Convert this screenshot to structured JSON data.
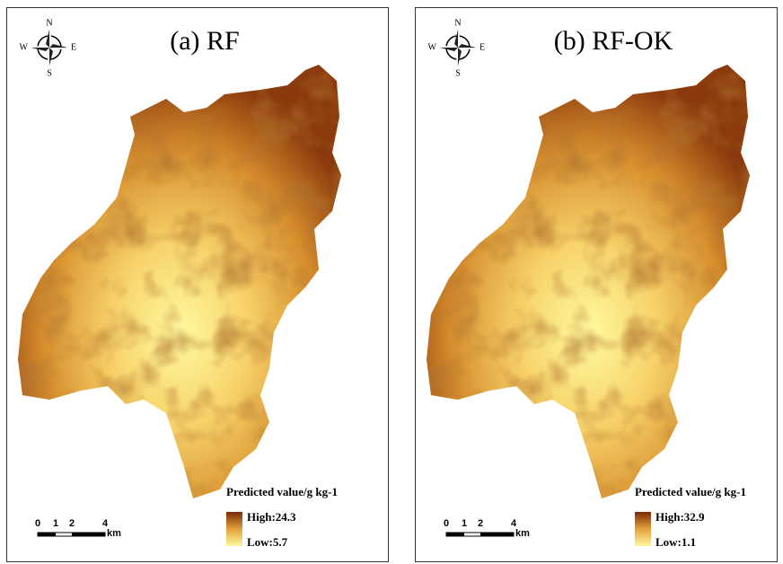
{
  "panels": [
    {
      "title": "(a) RF",
      "compass": {
        "n": "N",
        "s": "S",
        "w": "W",
        "e": "E"
      },
      "legend": {
        "title": "Predicted value/g kg-1",
        "high": "High:24.3",
        "low": "Low:5.7"
      },
      "scale": {
        "ticks": [
          "0",
          "1",
          "2",
          "4"
        ],
        "unit": "km"
      }
    },
    {
      "title": "(b) RF-OK",
      "compass": {
        "n": "N",
        "s": "S",
        "w": "W",
        "e": "E"
      },
      "legend": {
        "title": "Predicted value/g kg-1",
        "high": "High:32.9",
        "low": "Low:1.1"
      },
      "scale": {
        "ticks": [
          "0",
          "1",
          "2",
          "4"
        ],
        "unit": "km"
      }
    }
  ]
}
